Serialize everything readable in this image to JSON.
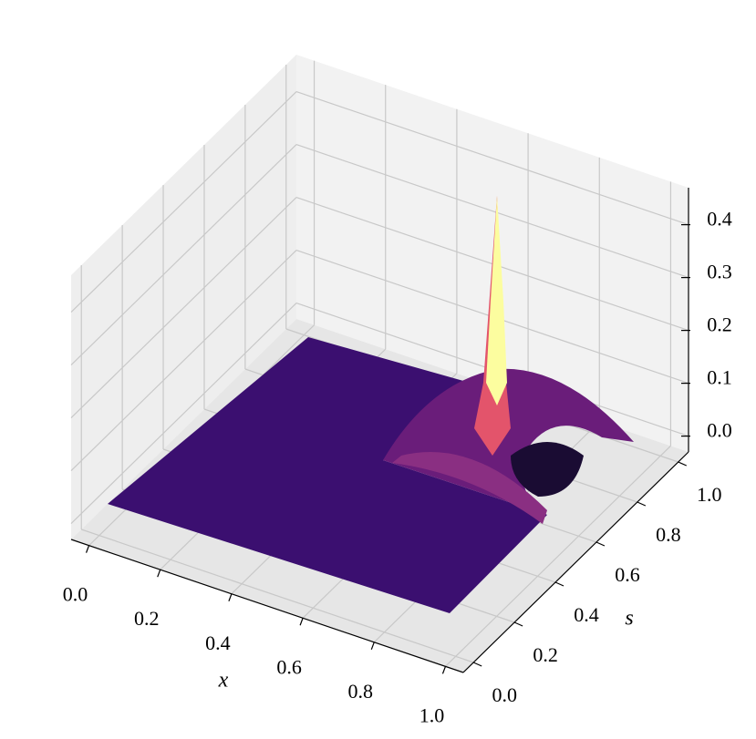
{
  "chart_data": {
    "type": "surface3d",
    "colormap": "magma",
    "x_label": "x",
    "y_label": "s",
    "xlim": [
      -0.05,
      1.05
    ],
    "ylim": [
      -0.05,
      1.05
    ],
    "zlim": [
      -0.03,
      0.47
    ],
    "xticks": [
      {
        "value": 0,
        "label": "0.0"
      },
      {
        "value": 0.2,
        "label": "0.2"
      },
      {
        "value": 0.4,
        "label": "0.4"
      },
      {
        "value": 0.6,
        "label": "0.6"
      },
      {
        "value": 0.8,
        "label": "0.8"
      },
      {
        "value": 1,
        "label": "1.0"
      }
    ],
    "yticks": [
      {
        "value": 0,
        "label": "0.0"
      },
      {
        "value": 0.2,
        "label": "0.2"
      },
      {
        "value": 0.4,
        "label": "0.4"
      },
      {
        "value": 0.6,
        "label": "0.6"
      },
      {
        "value": 0.8,
        "label": "0.8"
      },
      {
        "value": 1,
        "label": "1.0"
      }
    ],
    "zticks": [
      {
        "value": 0,
        "label": "0.0"
      },
      {
        "value": 0.1,
        "label": "0.1"
      },
      {
        "value": 0.2,
        "label": "0.2"
      },
      {
        "value": 0.3,
        "label": "0.3"
      },
      {
        "value": 0.4,
        "label": "0.4"
      }
    ],
    "grid": true
  }
}
